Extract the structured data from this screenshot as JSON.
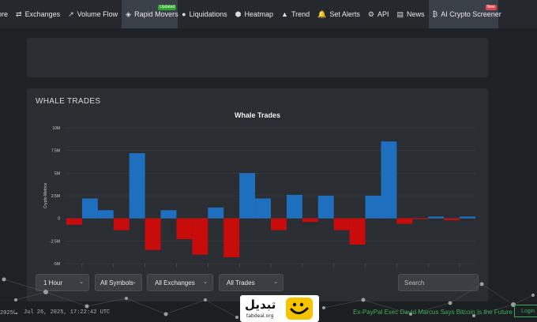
{
  "nav": {
    "items": [
      {
        "label": "ore",
        "icon": ""
      },
      {
        "label": "Exchanges",
        "icon": "⇄"
      },
      {
        "label": "Volume Flow",
        "icon": "↗"
      },
      {
        "label": "Rapid Movers",
        "icon": "◈",
        "badge": "Updated"
      },
      {
        "label": "Liquidations",
        "icon": "●"
      },
      {
        "label": "Heatmap",
        "icon": "⬢"
      },
      {
        "label": "Trend",
        "icon": "▲"
      },
      {
        "label": "Set Alerts",
        "icon": "🔔"
      },
      {
        "label": "API",
        "icon": "⚙"
      },
      {
        "label": "News",
        "icon": "▤"
      },
      {
        "label": "AI Crypto Screener",
        "icon": "₿",
        "badge": "New"
      }
    ]
  },
  "section": {
    "title": "WHALE TRADES"
  },
  "chart_data": {
    "type": "bar",
    "title": "Whale Trades",
    "ylabel": "Crypto Metrics",
    "ylim": [
      -5000000,
      10000000
    ],
    "yticks": [
      "10M",
      "7.5M",
      "5M",
      "2.5M",
      "0",
      "-2.5M",
      "-5M"
    ],
    "grid": true,
    "values": [
      -700000,
      2200000,
      900000,
      -1300000,
      7200000,
      -3500000,
      900000,
      -2300000,
      -4000000,
      1200000,
      -4300000,
      5000000,
      2200000,
      -1300000,
      2600000,
      -400000,
      2500000,
      -1300000,
      -2900000,
      2500000,
      8500000,
      -600000,
      -100000,
      200000,
      -200000,
      200000
    ],
    "colors": {
      "positive": "#1f6fbf",
      "negative": "#c80c0c"
    }
  },
  "controls": {
    "timeframe": "1 Hour",
    "symbols": "All Symbols",
    "exchanges": "All Exchanges",
    "trades": "All Trades",
    "search_placeholder": "Search"
  },
  "footer": {
    "date_fragment": "2025ما",
    "timestamp": "Jul 26, 2025, 17:22:42 UTC",
    "ticker": "Ex-PayPal Exec David Marcus Says Bitcoin Is the Future",
    "login": "Login",
    "logo_text": "تبدیل",
    "logo_sub": "tabdeal.org"
  }
}
